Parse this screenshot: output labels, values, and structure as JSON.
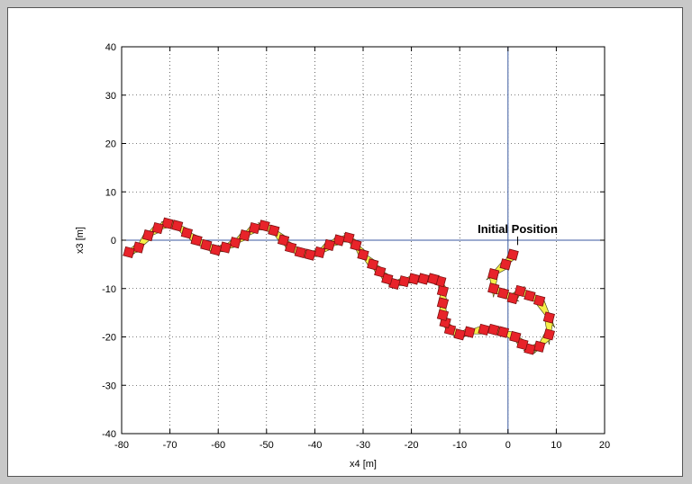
{
  "chart_data": {
    "type": "scatter",
    "title": "",
    "xlabel": "x4 [m]",
    "ylabel": "x3 [m]",
    "xlim": [
      -80,
      20
    ],
    "ylim": [
      -40,
      40
    ],
    "xticks": [
      -80,
      -70,
      -60,
      -50,
      -40,
      -30,
      -20,
      -10,
      0,
      10,
      20
    ],
    "yticks": [
      -40,
      -30,
      -20,
      -10,
      0,
      10,
      20,
      30,
      40
    ],
    "grid": true,
    "grid_style": "dotted",
    "reference_lines": {
      "x": 0,
      "y": 0
    },
    "annotation": {
      "text": "Initial Position",
      "x": 2,
      "y": 1.5,
      "pointer_to": [
        2,
        -1
      ]
    },
    "colors": {
      "marker": "#e8232a",
      "marker_edge": "#7a1010",
      "body": "#f5ef4a",
      "body_edge": "#3a3a10",
      "axis_line": "#3b5aa0"
    },
    "series": [
      {
        "points": [
          [
            1,
            -3
          ],
          [
            -0.5,
            -5
          ],
          [
            -3,
            -7
          ],
          [
            -3,
            -10
          ],
          [
            -1,
            -11
          ],
          [
            1,
            -12
          ],
          [
            2.5,
            -10.5
          ],
          [
            4.5,
            -11.5
          ],
          [
            6.5,
            -12.5
          ],
          [
            8.5,
            -16
          ],
          [
            8.5,
            -19.5
          ],
          [
            6.5,
            -22
          ],
          [
            4.5,
            -22.5
          ],
          [
            3,
            -21.5
          ],
          [
            1.5,
            -20
          ],
          [
            -1,
            -19
          ],
          [
            -3,
            -18.5
          ],
          [
            -5,
            -18.5
          ],
          [
            -8,
            -19
          ],
          [
            -10,
            -19.5
          ],
          [
            -12,
            -18.5
          ],
          [
            -13,
            -17
          ],
          [
            -13.5,
            -15.5
          ],
          [
            -13.5,
            -13
          ],
          [
            -13.5,
            -10.5
          ],
          [
            -14,
            -8.5
          ],
          [
            -15.5,
            -8
          ],
          [
            -17.5,
            -8
          ],
          [
            -19.5,
            -8
          ],
          [
            -21.5,
            -8.5
          ],
          [
            -23.5,
            -9
          ],
          [
            -25,
            -8
          ],
          [
            -26.5,
            -6.5
          ],
          [
            -28,
            -5
          ],
          [
            -30,
            -3
          ],
          [
            -31.5,
            -1
          ],
          [
            -33,
            0.5
          ],
          [
            -35,
            0
          ],
          [
            -37,
            -1
          ],
          [
            -39,
            -2.5
          ],
          [
            -41,
            -3
          ],
          [
            -43,
            -2.5
          ],
          [
            -45,
            -1.5
          ],
          [
            -46.5,
            0
          ],
          [
            -48.5,
            2
          ],
          [
            -50.5,
            3
          ],
          [
            -52.5,
            2.5
          ],
          [
            -54.5,
            1
          ],
          [
            -56.5,
            -0.5
          ],
          [
            -58.5,
            -1.5
          ],
          [
            -60.5,
            -2
          ],
          [
            -62.5,
            -1
          ],
          [
            -64.5,
            0
          ],
          [
            -66.5,
            1.5
          ],
          [
            -68.5,
            3
          ],
          [
            -70.5,
            3.5
          ],
          [
            -72.5,
            2.5
          ],
          [
            -74.5,
            1
          ],
          [
            -76.5,
            -1.5
          ],
          [
            -78.5,
            -2.5
          ]
        ]
      }
    ]
  }
}
